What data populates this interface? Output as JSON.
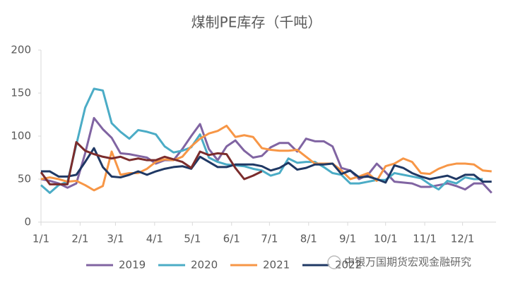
{
  "chart_data": {
    "type": "line",
    "title": "煤制PE库存（千吨）",
    "x": [
      0,
      1,
      2,
      3,
      4,
      5,
      6,
      7,
      8,
      9,
      10,
      11,
      12,
      13,
      14,
      15,
      16,
      17,
      18,
      19,
      20,
      21,
      22,
      23,
      24,
      25,
      26,
      27,
      28,
      29,
      30,
      31,
      32,
      33,
      34,
      35,
      36,
      37,
      38,
      39,
      40,
      41,
      42,
      43,
      44,
      45,
      46,
      47,
      48,
      49,
      50,
      51
    ],
    "xlim": [
      0,
      51.5
    ],
    "xticks": [
      {
        "value": 0,
        "label": "1/1"
      },
      {
        "value": 4.43,
        "label": "2/1"
      },
      {
        "value": 8.43,
        "label": "3/1"
      },
      {
        "value": 12.86,
        "label": "4/1"
      },
      {
        "value": 17.14,
        "label": "5/1"
      },
      {
        "value": 21.57,
        "label": "6/1"
      },
      {
        "value": 25.86,
        "label": "7/1"
      },
      {
        "value": 30.29,
        "label": "8/1"
      },
      {
        "value": 34.71,
        "label": "9/1"
      },
      {
        "value": 39,
        "label": "10/1"
      },
      {
        "value": 43.43,
        "label": "11/1"
      },
      {
        "value": 47.71,
        "label": "12/1"
      }
    ],
    "ylim": [
      0,
      200
    ],
    "yticks": [
      0,
      50,
      100,
      150,
      200
    ],
    "series": [
      {
        "name": "2019",
        "color": "#8064a2",
        "values": [
          50,
          48,
          45,
          40,
          45,
          80,
          121,
          108,
          98,
          80,
          79,
          77,
          75,
          68,
          72,
          72,
          85,
          100,
          114,
          85,
          72,
          88,
          95,
          83,
          75,
          77,
          87,
          92,
          92,
          82,
          97,
          94,
          94,
          88,
          63,
          60,
          50,
          55,
          68,
          58,
          47,
          46,
          45,
          41,
          41,
          43,
          45,
          42,
          38,
          45,
          45,
          34
        ]
      },
      {
        "name": "2020",
        "color": "#4bacc6",
        "values": [
          43,
          34,
          43,
          47,
          90,
          133,
          155,
          153,
          115,
          105,
          97,
          107,
          105,
          102,
          88,
          81,
          83,
          87,
          102,
          75,
          70,
          67,
          66,
          65,
          62,
          60,
          54,
          57,
          74,
          69,
          70,
          70,
          64,
          57,
          55,
          45,
          45,
          47,
          49,
          49,
          57,
          55,
          53,
          51,
          44,
          38,
          48,
          45,
          52,
          50,
          50,
          null
        ]
      },
      {
        "name": "2021",
        "color": "#f79646",
        "values": [
          50,
          52,
          50,
          47,
          48,
          43,
          37,
          42,
          82,
          55,
          57,
          57,
          62,
          70,
          73,
          72,
          76,
          88,
          97,
          103,
          106,
          112,
          99,
          101,
          99,
          86,
          84,
          83,
          83,
          84,
          76,
          68,
          68,
          68,
          60,
          50,
          53,
          57,
          48,
          65,
          68,
          74,
          70,
          57,
          56,
          62,
          66,
          68,
          68,
          67,
          60,
          59
        ]
      },
      {
        "name": "2022",
        "color": "#1f3864",
        "values": [
          59,
          59,
          53,
          53,
          55,
          70,
          86,
          64,
          53,
          52,
          55,
          59,
          55,
          59,
          62,
          64,
          65,
          62,
          76,
          70,
          64,
          64,
          67,
          67,
          67,
          65,
          60,
          63,
          69,
          61,
          63,
          67,
          67,
          68,
          56,
          60,
          52,
          53,
          50,
          46,
          66,
          63,
          57,
          53,
          50,
          52,
          54,
          50,
          55,
          55,
          47,
          47
        ]
      },
      {
        "color": "#7b2c2c",
        "values": [
          58,
          44,
          44,
          44,
          93,
          83,
          79,
          76,
          74,
          76,
          72,
          74,
          72,
          72,
          76,
          73,
          70,
          63,
          82,
          78,
          80,
          79,
          63,
          50,
          54,
          59,
          null,
          null,
          null,
          null,
          null,
          null,
          null,
          null,
          null,
          null,
          null,
          null,
          null,
          null,
          null,
          null,
          null,
          null,
          null,
          null,
          null,
          null,
          null,
          null,
          null,
          null
        ]
      }
    ],
    "watermark": "中银万国期货宏观金融研究"
  }
}
